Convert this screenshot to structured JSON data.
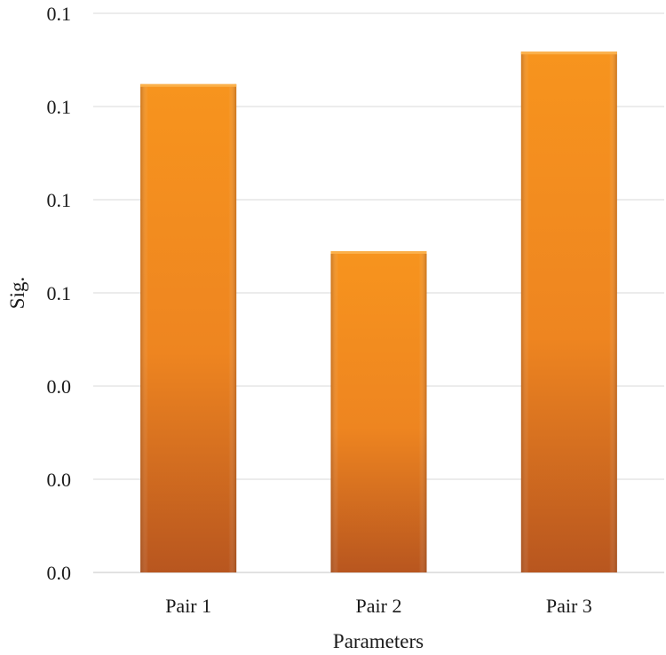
{
  "chart_data": {
    "type": "bar",
    "title": "",
    "xlabel": "Parameters",
    "ylabel": "Sig.",
    "categories": [
      "Pair 1",
      "Pair 2",
      "Pair 3"
    ],
    "values": [
      0.131,
      0.0862,
      0.1397
    ],
    "ylim": [
      0,
      0.15
    ],
    "y_ticks": [
      0,
      0.025,
      0.05,
      0.075,
      0.1,
      0.125,
      0.15
    ],
    "y_tick_labels": [
      "0.0",
      "0.0",
      "0.0",
      "0.1",
      "0.1",
      "0.1",
      "0.1"
    ],
    "grid": true,
    "legend": "none",
    "colors": {
      "bar_light": "#f7941e",
      "bar_mid": "#f08a1f",
      "bar_dark": "#b8561f",
      "gridline": "#e6e6e6"
    }
  }
}
